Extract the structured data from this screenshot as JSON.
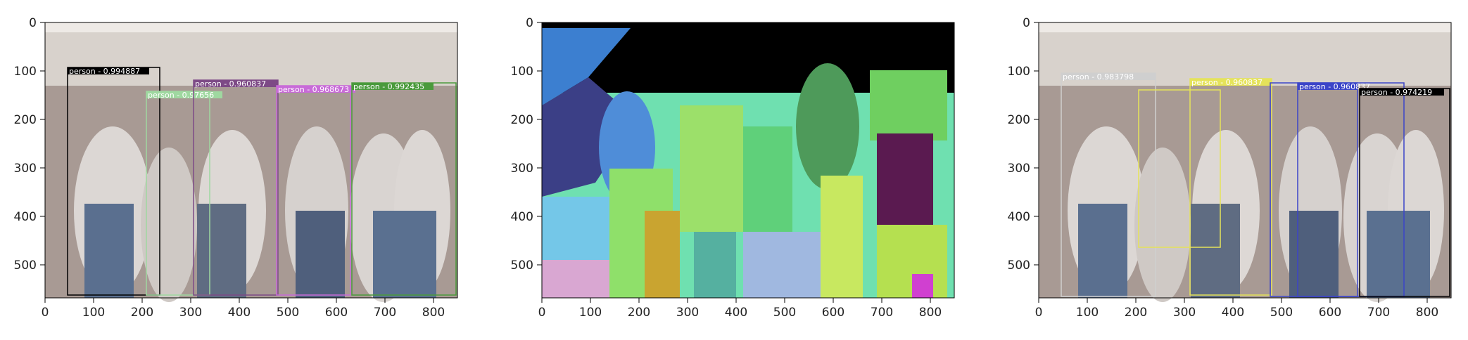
{
  "panels": [
    {
      "name": "detections",
      "x_ticks": [
        "0",
        "100",
        "200",
        "300",
        "400",
        "500",
        "600",
        "700",
        "800"
      ],
      "y_ticks": [
        "0",
        "100",
        "200",
        "300",
        "400",
        "500"
      ],
      "detections": [
        {
          "label": "person - 0.994887",
          "color": "#000000"
        },
        {
          "label": "person - 0.97656",
          "color": "#9fd8a0"
        },
        {
          "label": "person - 0.960837",
          "color": "#7d4a86"
        },
        {
          "label": "person - 0.968673",
          "color": "#c86bd8"
        },
        {
          "label": "person - 0.992435",
          "color": "#4a9a3c"
        }
      ]
    },
    {
      "name": "segmentation",
      "x_ticks": [
        "0",
        "100",
        "200",
        "300",
        "400",
        "500",
        "600",
        "700",
        "800"
      ],
      "y_ticks": [
        "0",
        "100",
        "200",
        "300",
        "400",
        "500"
      ]
    },
    {
      "name": "detections-alt",
      "x_ticks": [
        "0",
        "100",
        "200",
        "300",
        "400",
        "500",
        "600",
        "700",
        "800"
      ],
      "y_ticks": [
        "0",
        "100",
        "200",
        "300",
        "400",
        "500"
      ],
      "detections": [
        {
          "label": "person - 0.983798",
          "color": "#cfcfcf"
        },
        {
          "label": "person - 0.960837",
          "color": "#e5e35a"
        },
        {
          "label": "person - 0.960837",
          "color": "#3b44c8"
        },
        {
          "label": "person - 0.974219",
          "color": "#000000"
        }
      ]
    }
  ]
}
